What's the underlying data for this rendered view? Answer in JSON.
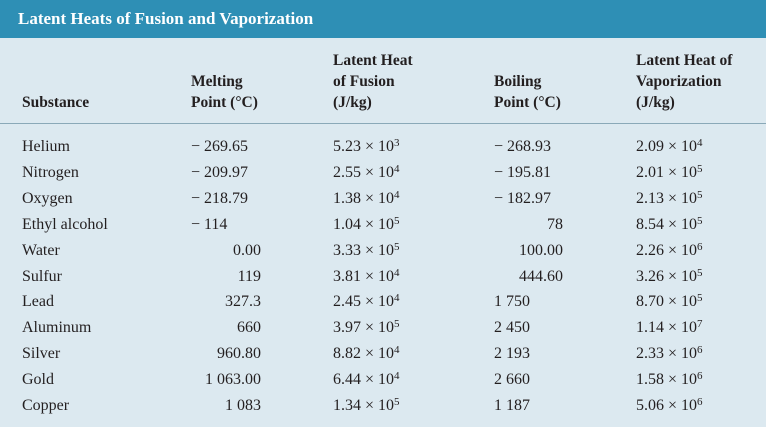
{
  "table": {
    "title": "Latent Heats of Fusion and Vaporization",
    "headers": [
      "Substance",
      "Melting\nPoint (°C)",
      "Latent Heat\nof Fusion\n(J/kg)",
      "Boiling\nPoint (°C)",
      "Latent Heat of\nVaporization\n(J/kg)"
    ],
    "rows": [
      {
        "substance": "Helium",
        "melting_point": "− 269.65",
        "fusion_mantissa": "5.23 × 10",
        "fusion_exp": "3",
        "boiling_point": "− 268.93",
        "vapor_mantissa": "2.09 × 10",
        "vapor_exp": "4"
      },
      {
        "substance": "Nitrogen",
        "melting_point": "− 209.97",
        "fusion_mantissa": "2.55 × 10",
        "fusion_exp": "4",
        "boiling_point": "− 195.81",
        "vapor_mantissa": "2.01 × 10",
        "vapor_exp": "5"
      },
      {
        "substance": "Oxygen",
        "melting_point": "− 218.79",
        "fusion_mantissa": "1.38 × 10",
        "fusion_exp": "4",
        "boiling_point": "− 182.97",
        "vapor_mantissa": "2.13 × 10",
        "vapor_exp": "5"
      },
      {
        "substance": "Ethyl alcohol",
        "melting_point": "− 114",
        "fusion_mantissa": "1.04 × 10",
        "fusion_exp": "5",
        "boiling_point": "78",
        "vapor_mantissa": "8.54 × 10",
        "vapor_exp": "5"
      },
      {
        "substance": "Water",
        "melting_point": "0.00",
        "fusion_mantissa": "3.33 × 10",
        "fusion_exp": "5",
        "boiling_point": "100.00",
        "vapor_mantissa": "2.26 × 10",
        "vapor_exp": "6"
      },
      {
        "substance": "Sulfur",
        "melting_point": "119",
        "fusion_mantissa": "3.81 × 10",
        "fusion_exp": "4",
        "boiling_point": "444.60",
        "vapor_mantissa": "3.26 × 10",
        "vapor_exp": "5"
      },
      {
        "substance": "Lead",
        "melting_point": "327.3",
        "fusion_mantissa": "2.45 × 10",
        "fusion_exp": "4",
        "boiling_point": "1 750",
        "vapor_mantissa": "8.70 × 10",
        "vapor_exp": "5"
      },
      {
        "substance": "Aluminum",
        "melting_point": "660",
        "fusion_mantissa": "3.97 × 10",
        "fusion_exp": "5",
        "boiling_point": "2 450",
        "vapor_mantissa": "1.14 × 10",
        "vapor_exp": "7"
      },
      {
        "substance": "Silver",
        "melting_point": "960.80",
        "fusion_mantissa": "8.82 × 10",
        "fusion_exp": "4",
        "boiling_point": "2 193",
        "vapor_mantissa": "2.33 × 10",
        "vapor_exp": "6"
      },
      {
        "substance": "Gold",
        "melting_point": "1 063.00",
        "fusion_mantissa": "6.44 × 10",
        "fusion_exp": "4",
        "boiling_point": "2 660",
        "vapor_mantissa": "1.58 × 10",
        "vapor_exp": "6"
      },
      {
        "substance": "Copper",
        "melting_point": "1 083",
        "fusion_mantissa": "1.34 × 10",
        "fusion_exp": "5",
        "boiling_point": "1 187",
        "vapor_mantissa": "5.06 × 10",
        "vapor_exp": "6"
      }
    ]
  },
  "colors": {
    "title_bar": "#2e8fb5",
    "table_background": "#dce9f0",
    "text": "#231f20"
  }
}
